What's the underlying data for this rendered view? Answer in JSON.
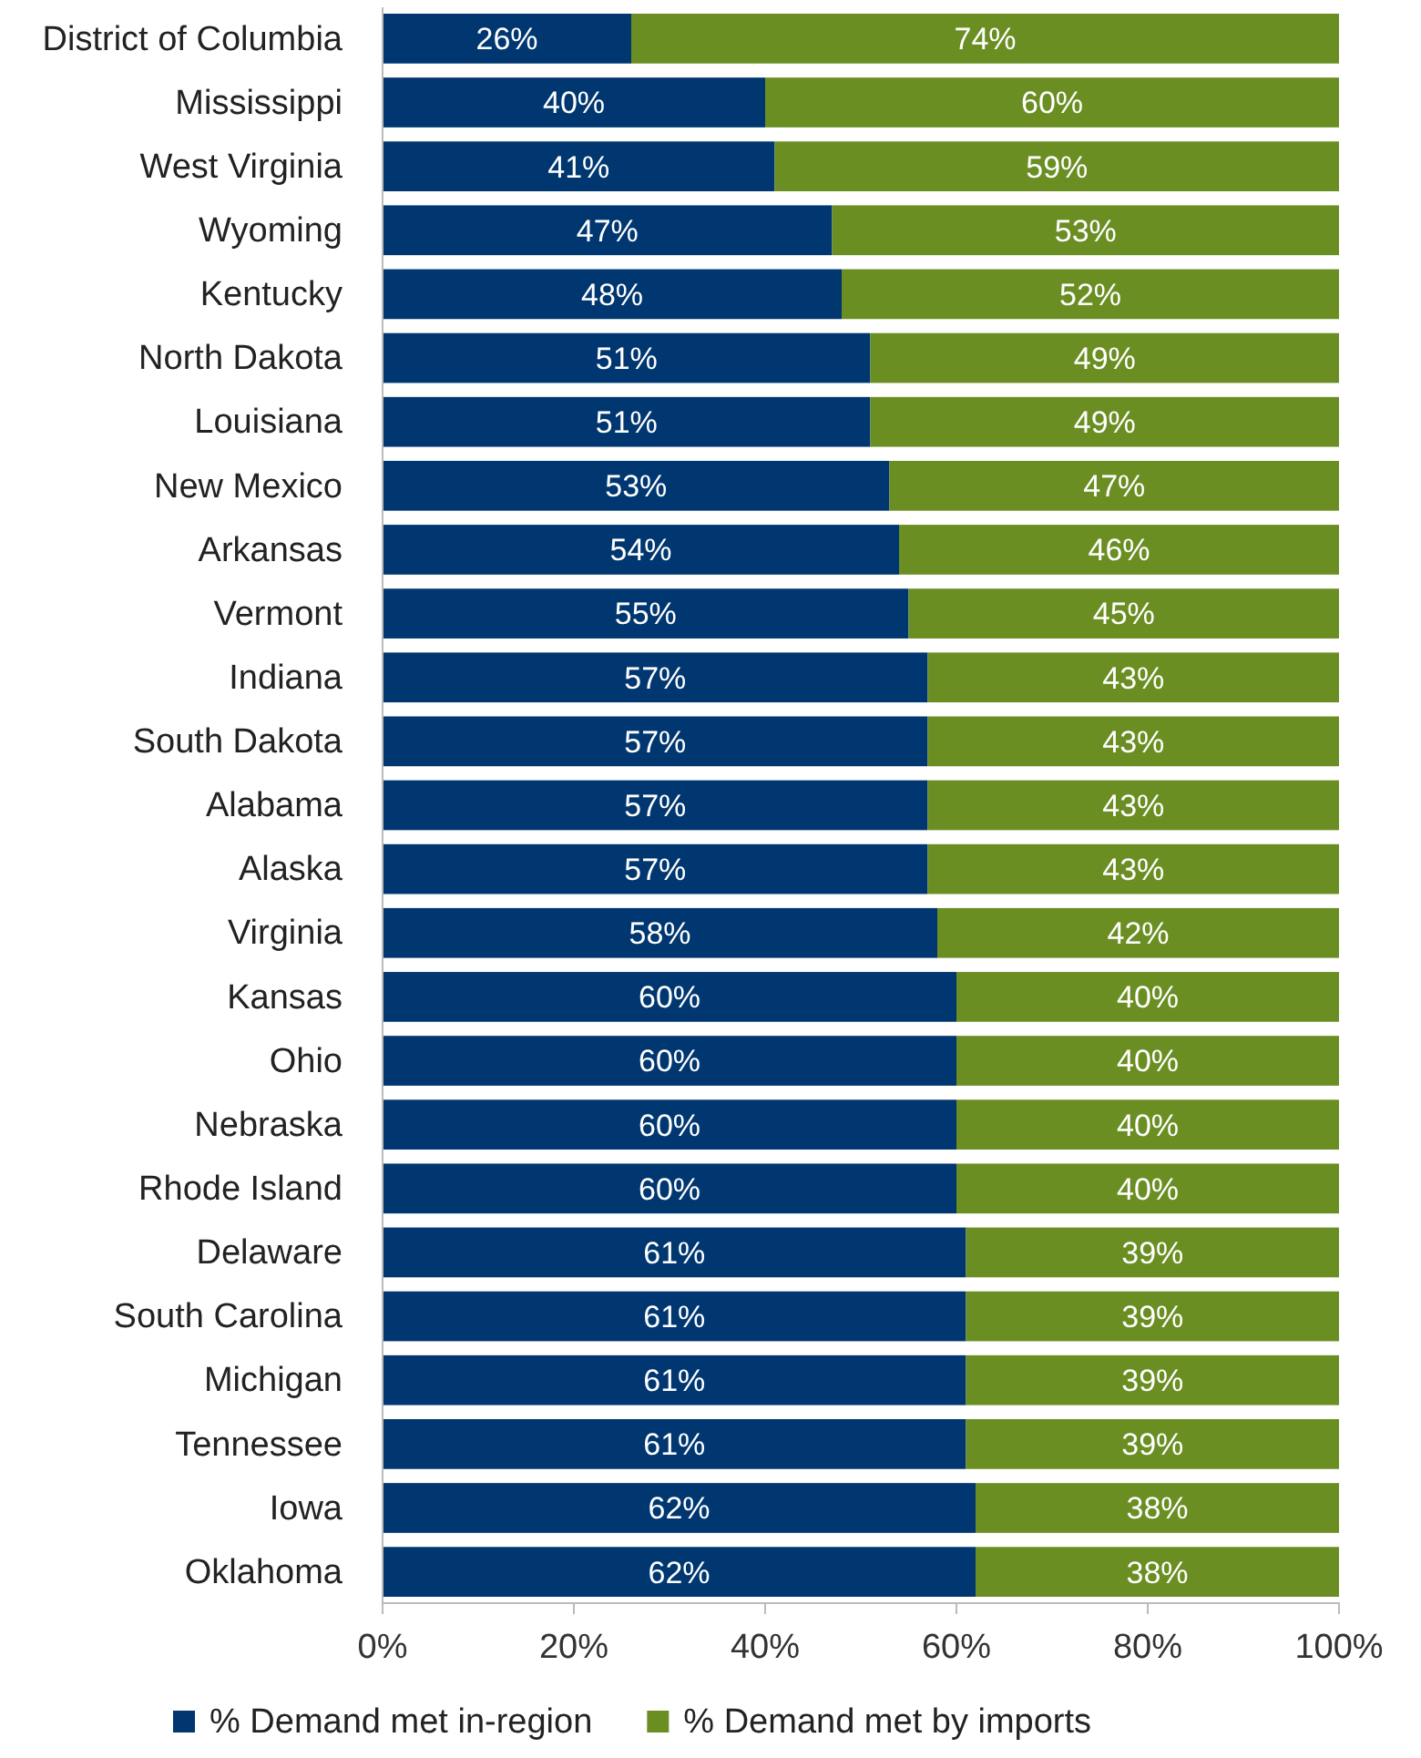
{
  "chart_data": {
    "type": "bar",
    "orientation": "horizontal",
    "stacked": true,
    "legend": "bottom",
    "categories": [
      "District of Columbia",
      "Mississippi",
      "West Virginia",
      "Wyoming",
      "Kentucky",
      "North Dakota",
      "Louisiana",
      "New Mexico",
      "Arkansas",
      "Vermont",
      "Indiana",
      "South Dakota",
      "Alabama",
      "Alaska",
      "Virginia",
      "Kansas",
      "Ohio",
      "Nebraska",
      "Rhode Island",
      "Delaware",
      "South Carolina",
      "Michigan",
      "Tennessee",
      "Iowa",
      "Oklahoma"
    ],
    "series": [
      {
        "name": "% Demand met in-region",
        "color": "#003770",
        "values": [
          26,
          40,
          41,
          47,
          48,
          51,
          51,
          53,
          54,
          55,
          57,
          57,
          57,
          57,
          58,
          60,
          60,
          60,
          60,
          61,
          61,
          61,
          61,
          62,
          62
        ],
        "value_labels": [
          "26%",
          "40%",
          "41%",
          "47%",
          "48%",
          "51%",
          "51%",
          "53%",
          "54%",
          "55%",
          "57%",
          "57%",
          "57%",
          "57%",
          "58%",
          "60%",
          "60%",
          "60%",
          "60%",
          "61%",
          "61%",
          "61%",
          "61%",
          "62%",
          "62%"
        ]
      },
      {
        "name": "% Demand met by imports",
        "color": "#6b8e23",
        "values": [
          74,
          60,
          59,
          53,
          52,
          49,
          49,
          47,
          46,
          45,
          43,
          43,
          43,
          43,
          42,
          40,
          40,
          40,
          40,
          39,
          39,
          39,
          39,
          38,
          38
        ],
        "value_labels": [
          "74%",
          "60%",
          "59%",
          "53%",
          "52%",
          "49%",
          "49%",
          "47%",
          "46%",
          "45%",
          "43%",
          "43%",
          "43%",
          "43%",
          "42%",
          "40%",
          "40%",
          "40%",
          "40%",
          "39%",
          "39%",
          "39%",
          "39%",
          "38%",
          "38%"
        ]
      }
    ],
    "xlim": [
      0,
      100
    ],
    "xticks": [
      {
        "value": 0,
        "label": "0%"
      },
      {
        "value": 20,
        "label": "20%"
      },
      {
        "value": 40,
        "label": "40%"
      },
      {
        "value": 60,
        "label": "60%"
      },
      {
        "value": 80,
        "label": "80%"
      },
      {
        "value": 100,
        "label": "100%"
      }
    ]
  }
}
